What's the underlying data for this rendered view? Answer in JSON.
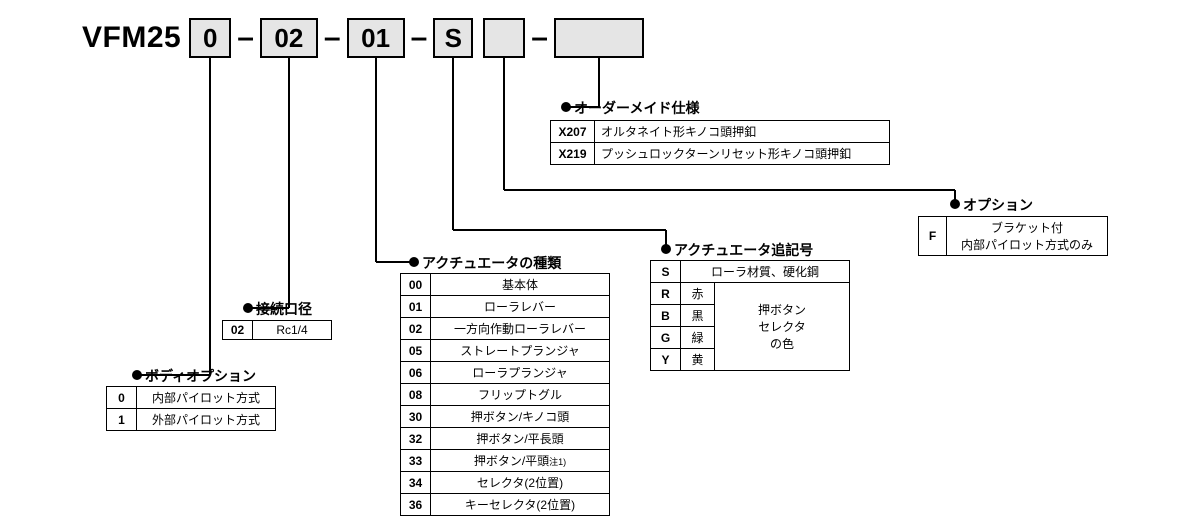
{
  "part": {
    "prefix": "VFM25",
    "segments": {
      "body": "0",
      "port": "02",
      "actuator": "01",
      "suffix": "S",
      "option": "",
      "custom": ""
    }
  },
  "sections": {
    "body": {
      "title": "ボディオプション",
      "rows": [
        {
          "code": "0",
          "label": "内部パイロット方式"
        },
        {
          "code": "1",
          "label": "外部パイロット方式"
        }
      ]
    },
    "port": {
      "title": "接続口径",
      "rows": [
        {
          "code": "02",
          "label": "Rc1/4"
        }
      ]
    },
    "actuatorType": {
      "title": "アクチュエータの種類",
      "rows": [
        {
          "code": "00",
          "label": "基本体"
        },
        {
          "code": "01",
          "label": "ローラレバー"
        },
        {
          "code": "02",
          "label": "一方向作動ローラレバー"
        },
        {
          "code": "05",
          "label": "ストレートプランジャ"
        },
        {
          "code": "06",
          "label": "ローラプランジャ"
        },
        {
          "code": "08",
          "label": "フリップトグル"
        },
        {
          "code": "30",
          "label": "押ボタン/キノコ頭"
        },
        {
          "code": "32",
          "label": "押ボタン/平長頭"
        },
        {
          "code": "33",
          "label": "押ボタン/平頭",
          "note": "注1)"
        },
        {
          "code": "34",
          "label": "セレクタ(2位置)"
        },
        {
          "code": "36",
          "label": "キーセレクタ(2位置)"
        }
      ]
    },
    "actuatorSuffix": {
      "title": "アクチュエータ追記号",
      "row1": {
        "code": "S",
        "label": "ローラ材質、硬化鋼"
      },
      "colorRows": [
        {
          "code": "R",
          "label": "赤"
        },
        {
          "code": "B",
          "label": "黒"
        },
        {
          "code": "G",
          "label": "緑"
        },
        {
          "code": "Y",
          "label": "黄"
        }
      ],
      "colorGroupLabel": "押ボタン\nセレクタ\nの色"
    },
    "option": {
      "title": "オプション",
      "rows": [
        {
          "code": "F",
          "label": "ブラケット付\n内部パイロット方式のみ"
        }
      ]
    },
    "custom": {
      "title": "オーダーメイド仕様",
      "rows": [
        {
          "code": "X207",
          "label": "オルタネイト形キノコ頭押釦"
        },
        {
          "code": "X219",
          "label": "プッシュロックターンリセット形キノコ頭押釦"
        }
      ]
    }
  },
  "colors": {
    "seg_bg": "#e5e5e5",
    "line": "#000000",
    "bg": "#ffffff"
  }
}
